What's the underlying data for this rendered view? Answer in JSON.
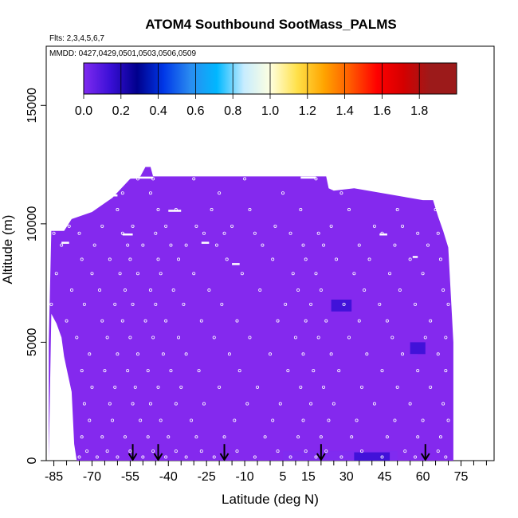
{
  "chart_data": {
    "type": "heatmap",
    "title": "ATOM4 Southbound SootMass_PALMS",
    "flights_note": "Flts: 2,3,4,5,6,7",
    "dates_note": "MMDD: 0427,0429,0501,0503,0506,0509",
    "xlabel": "Latitude (deg N)",
    "ylabel": "Altitude (m)",
    "xlim": [
      -88,
      88
    ],
    "ylim": [
      0,
      17500
    ],
    "x_ticks": [
      -85,
      -70,
      -55,
      -40,
      -25,
      -10,
      5,
      15,
      30,
      45,
      60,
      75
    ],
    "x_tick_labels": [
      "-85",
      "-70",
      "-55",
      "-40",
      "-25",
      "-10",
      "5",
      "15",
      "30",
      "45",
      "60",
      "75"
    ],
    "x_minor_ticks": [
      -80,
      -75,
      -65,
      -60,
      -50,
      -45,
      -35,
      -30,
      -20,
      -15,
      -5,
      0,
      10,
      20,
      25,
      35,
      40,
      50,
      55,
      65,
      70,
      80,
      85
    ],
    "y_ticks": [
      0,
      5000,
      10000,
      15000
    ],
    "y_tick_labels": [
      "0",
      "5000",
      "10000",
      "15000"
    ],
    "colorbar": {
      "range": [
        0,
        2.0
      ],
      "tick_values": [
        0.0,
        0.2,
        0.4,
        0.6,
        0.8,
        1.0,
        1.2,
        1.4,
        1.6,
        1.8
      ],
      "tick_labels": [
        "0.0",
        "0.2",
        "0.4",
        "0.6",
        "0.8",
        "1.0",
        "1.2",
        "1.4",
        "1.6",
        "1.8"
      ],
      "colors": [
        "#7f2bf0",
        "#3a0fd6",
        "#00008c",
        "#0038e8",
        "#2a8cf0",
        "#00b8ff",
        "#c6ecff",
        "#ffffe0",
        "#ffe14a",
        "#ffa500",
        "#ff5a00",
        "#ff0000",
        "#d40000",
        "#9c1a1a"
      ]
    },
    "background_value": 0.05,
    "fill_color": "#8429ee",
    "curtain_outline": [
      [
        -87,
        0
      ],
      [
        -87,
        5000
      ],
      [
        -86,
        9700
      ],
      [
        -81,
        9700
      ],
      [
        -78,
        10200
      ],
      [
        -70,
        10500
      ],
      [
        -62,
        11100
      ],
      [
        -55,
        11900
      ],
      [
        -51,
        12000
      ],
      [
        -49,
        12400
      ],
      [
        -47,
        12400
      ],
      [
        -46,
        12000
      ],
      [
        10,
        12000
      ],
      [
        22,
        12000
      ],
      [
        23,
        11500
      ],
      [
        25,
        11400
      ],
      [
        33,
        11500
      ],
      [
        60,
        11000
      ],
      [
        64,
        11000
      ],
      [
        66,
        10300
      ],
      [
        68,
        9700
      ],
      [
        70,
        9000
      ],
      [
        71,
        7000
      ],
      [
        72,
        5000
      ],
      [
        72,
        0
      ],
      [
        -76,
        0
      ],
      [
        -77,
        700
      ],
      [
        -78,
        2900
      ],
      [
        -80,
        3900
      ],
      [
        -81,
        4400
      ],
      [
        -82,
        5200
      ],
      [
        -84,
        5800
      ],
      [
        -86,
        6200
      ]
    ],
    "enhanced_patches": [
      {
        "lat": [
          24,
          32
        ],
        "alt": [
          6300,
          6800
        ],
        "value": 0.15
      },
      {
        "lat": [
          55,
          61
        ],
        "alt": [
          4500,
          5000
        ],
        "value": 0.15
      },
      {
        "lat": [
          55,
          58
        ],
        "alt": [
          4300,
          4500
        ],
        "value": 0.12
      },
      {
        "lat": [
          5,
          50
        ],
        "alt": [
          0,
          400
        ],
        "value": 0.1
      },
      {
        "lat": [
          33,
          47
        ],
        "alt": [
          0,
          350
        ],
        "value": 0.15
      }
    ],
    "sample_point_rows": [
      {
        "alt": 11900,
        "lats": [
          -52,
          -46,
          -30,
          -10,
          18
        ]
      },
      {
        "alt": 11300,
        "lats": [
          -64,
          -58,
          -47,
          -20,
          5,
          28,
          62
        ]
      },
      {
        "alt": 10600,
        "lats": [
          -72,
          -60,
          -44,
          -37,
          -23,
          -8,
          12,
          31,
          50,
          65
        ]
      },
      {
        "alt": 9900,
        "lats": [
          -79,
          -66,
          -54,
          -41,
          -29,
          -15,
          2,
          24,
          41,
          52
        ]
      },
      {
        "alt": 9600,
        "lats": [
          -85,
          -75,
          -58,
          -45,
          -26,
          -18,
          -6,
          8,
          19,
          44,
          58,
          66
        ]
      },
      {
        "alt": 9100,
        "lats": [
          -82,
          -69,
          -56,
          -50,
          -39,
          -33,
          -21,
          -3,
          13,
          21,
          35,
          49,
          62
        ]
      },
      {
        "alt": 8500,
        "lats": [
          -74,
          -63,
          -55,
          -44,
          -36,
          -17,
          1,
          14,
          26,
          39,
          55,
          67
        ]
      },
      {
        "alt": 7900,
        "lats": [
          -84,
          -70,
          -59,
          -52,
          -43,
          -30,
          -11,
          9,
          18,
          33,
          47,
          60
        ]
      },
      {
        "alt": 7200,
        "lats": [
          -78,
          -67,
          -57,
          -47,
          -38,
          -24,
          -4,
          11,
          20,
          37,
          51,
          68
        ]
      },
      {
        "alt": 6600,
        "lats": [
          -86,
          -73,
          -61,
          -54,
          -45,
          -34,
          -19,
          6,
          16,
          29,
          43,
          57,
          70
        ]
      },
      {
        "alt": 5900,
        "lats": [
          -80,
          -66,
          -58,
          -49,
          -41,
          -27,
          -13,
          3,
          14,
          22,
          35,
          46,
          63
        ]
      },
      {
        "alt": 5200,
        "lats": [
          -76,
          -64,
          -55,
          -46,
          -36,
          -22,
          -8,
          10,
          19,
          31,
          48,
          61,
          69
        ]
      },
      {
        "alt": 4500,
        "lats": [
          -71,
          -60,
          -52,
          -42,
          -33,
          -16,
          0,
          13,
          24,
          38,
          52,
          66
        ]
      },
      {
        "alt": 3800,
        "lats": [
          -74,
          -65,
          -56,
          -48,
          -39,
          -28,
          -12,
          7,
          17,
          27,
          44,
          58,
          69
        ]
      },
      {
        "alt": 3100,
        "lats": [
          -70,
          -61,
          -53,
          -44,
          -35,
          -20,
          -5,
          12,
          21,
          36,
          50,
          63
        ]
      },
      {
        "alt": 2400,
        "lats": [
          -73,
          -63,
          -54,
          -47,
          -37,
          -26,
          -9,
          4,
          16,
          25,
          41,
          55,
          68
        ]
      },
      {
        "alt": 1700,
        "lats": [
          -71,
          -62,
          -51,
          -43,
          -31,
          -14,
          1,
          13,
          23,
          34,
          49,
          60,
          70
        ]
      },
      {
        "alt": 1000,
        "lats": [
          -74,
          -66,
          -57,
          -48,
          -40,
          -29,
          -18,
          -2,
          11,
          20,
          32,
          46,
          58,
          67
        ]
      },
      {
        "alt": 400,
        "lats": [
          -72,
          -64,
          -55,
          -46,
          -37,
          -27,
          -13,
          3,
          14,
          22,
          36,
          53,
          66
        ]
      },
      {
        "alt": 150,
        "lats": [
          -75,
          -68,
          -60,
          -50,
          -41,
          -33,
          -22,
          -6,
          8,
          18,
          28,
          44,
          57,
          69
        ]
      }
    ],
    "flight_level_dashes": [
      {
        "alt": 11950,
        "lats": [
          -55,
          -46,
          12,
          18
        ]
      },
      {
        "alt": 11200,
        "lats": [
          -70,
          -60
        ]
      },
      {
        "alt": 10550,
        "lats": [
          -40,
          -35
        ]
      },
      {
        "alt": 9550,
        "lats": [
          -58,
          -54,
          43,
          46
        ]
      },
      {
        "alt": 9200,
        "lats": [
          -82,
          -79,
          -27,
          -24
        ]
      },
      {
        "alt": 8300,
        "lats": [
          -15,
          -12
        ]
      },
      {
        "alt": 8600,
        "lats": [
          56,
          58
        ]
      }
    ],
    "arrow_latitudes": [
      -54,
      -44,
      -18,
      20,
      61
    ]
  }
}
